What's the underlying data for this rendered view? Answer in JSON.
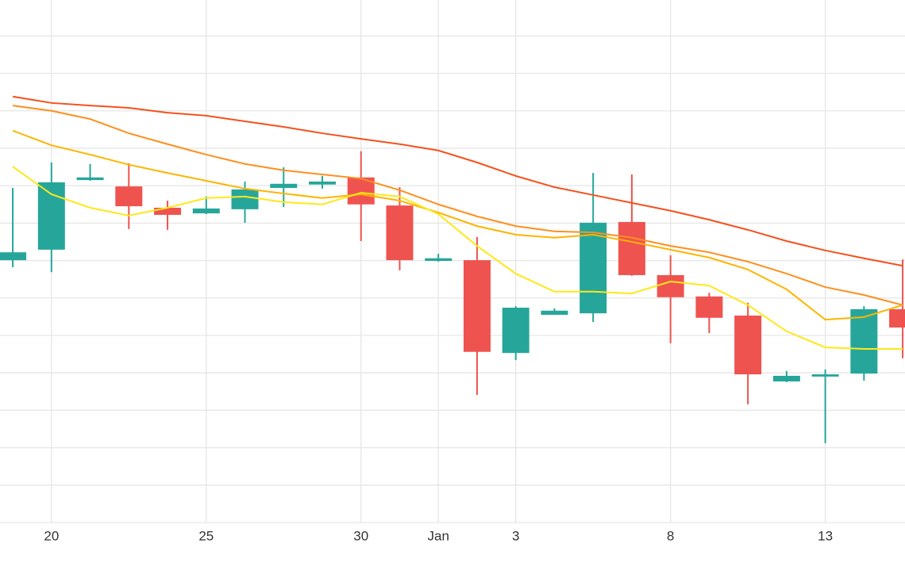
{
  "chart_data": {
    "type": "candlestick",
    "x": [
      0,
      1,
      2,
      3,
      4,
      5,
      6,
      7,
      8,
      9,
      10,
      11,
      12,
      13,
      14,
      15,
      16,
      17,
      18,
      19,
      20,
      21,
      22,
      23
    ],
    "open": [
      7.01,
      7.29,
      9.15,
      8.98,
      8.41,
      8.26,
      8.37,
      8.94,
      9.03,
      9.22,
      8.47,
      6.99,
      7.01,
      4.53,
      5.55,
      5.59,
      8.03,
      6.61,
      6.04,
      5.53,
      3.77,
      3.9,
      3.98,
      5.7
    ],
    "high": [
      8.94,
      9.62,
      9.58,
      9.6,
      8.6,
      8.71,
      9.11,
      9.49,
      9.26,
      9.92,
      8.96,
      7.18,
      7.63,
      5.78,
      5.72,
      9.34,
      9.3,
      7.14,
      6.14,
      5.87,
      4.05,
      4.09,
      5.78,
      7.03
    ],
    "low": [
      6.82,
      6.69,
      9.13,
      7.84,
      7.82,
      8.24,
      8.01,
      8.43,
      8.92,
      7.52,
      6.74,
      6.97,
      3.41,
      4.34,
      5.55,
      5.36,
      6.59,
      4.79,
      5.06,
      3.16,
      3.75,
      2.12,
      3.79,
      4.39
    ],
    "close": [
      7.22,
      9.09,
      9.22,
      8.45,
      8.22,
      8.39,
      8.9,
      9.05,
      9.11,
      8.5,
      7.01,
      7.06,
      4.56,
      5.74,
      5.66,
      8.01,
      6.61,
      6.02,
      5.47,
      3.96,
      3.92,
      3.96,
      5.7,
      5.21
    ],
    "up_color": "#26a69a",
    "down_color": "#ef5350",
    "lines": [
      {
        "color": "#f4511e",
        "values": [
          11.38,
          11.21,
          11.14,
          11.08,
          10.95,
          10.87,
          10.72,
          10.57,
          10.4,
          10.25,
          10.11,
          9.94,
          9.62,
          9.26,
          8.96,
          8.75,
          8.54,
          8.33,
          8.09,
          7.82,
          7.52,
          7.27,
          7.06,
          6.86
        ]
      },
      {
        "color": "#ff8f1f",
        "values": [
          11.14,
          11.0,
          10.78,
          10.4,
          10.11,
          9.83,
          9.58,
          9.41,
          9.3,
          9.19,
          8.88,
          8.5,
          8.18,
          7.92,
          7.78,
          7.75,
          7.61,
          7.39,
          7.22,
          6.97,
          6.65,
          6.29,
          6.08,
          5.81
        ]
      },
      {
        "color": "#ffb400",
        "values": [
          10.47,
          10.08,
          9.83,
          9.56,
          9.34,
          9.13,
          8.92,
          8.79,
          8.67,
          8.77,
          8.6,
          8.28,
          7.92,
          7.69,
          7.61,
          7.69,
          7.5,
          7.29,
          7.08,
          6.76,
          6.23,
          5.42,
          5.49,
          5.81
        ]
      },
      {
        "color": "#ffe81a",
        "values": [
          9.51,
          8.77,
          8.41,
          8.2,
          8.41,
          8.67,
          8.71,
          8.56,
          8.5,
          8.81,
          8.71,
          8.24,
          7.39,
          6.65,
          6.17,
          6.17,
          6.12,
          6.44,
          6.33,
          5.81,
          5.11,
          4.68,
          4.64,
          4.64
        ]
      }
    ],
    "xlim": [
      -0.33,
      23.06
    ],
    "xticks": [
      {
        "value": 1,
        "label": "20"
      },
      {
        "value": 5,
        "label": "25"
      },
      {
        "value": 9,
        "label": "30"
      },
      {
        "value": 11,
        "label": "Jan"
      },
      {
        "value": 13,
        "label": "3"
      },
      {
        "value": 17,
        "label": "8"
      },
      {
        "value": 21,
        "label": "13"
      }
    ],
    "ylim": [
      0,
      13.96
    ],
    "yticks": [
      0,
      1,
      2,
      3,
      4,
      5,
      6,
      7,
      8,
      9,
      10,
      11,
      12,
      13
    ],
    "grid": true
  }
}
